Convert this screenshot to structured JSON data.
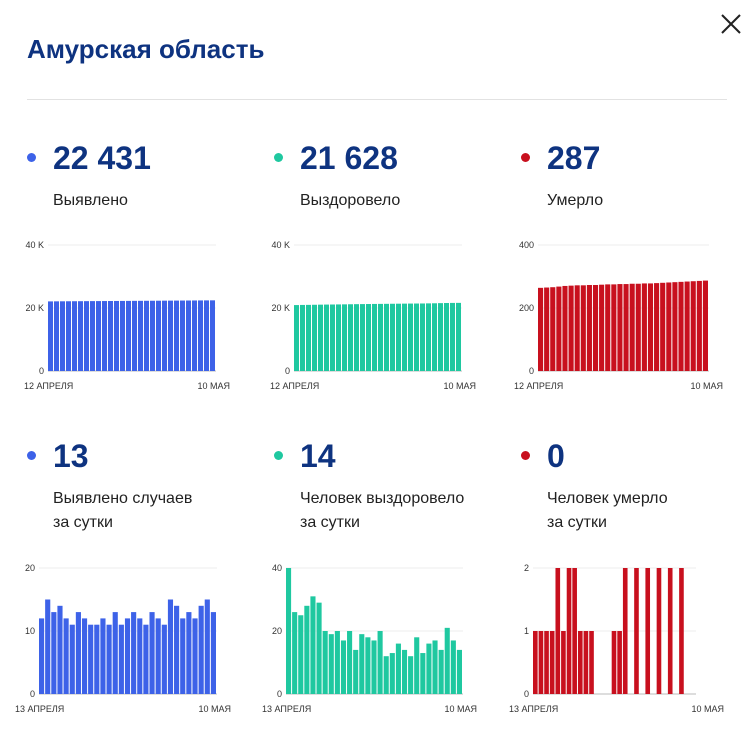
{
  "header": {
    "title": "Амурская область",
    "close_icon": "close-icon"
  },
  "colors": {
    "title": "#0e3380",
    "confirmed": "#3d62e8",
    "recovered": "#1fc8a0",
    "deaths": "#c8101e"
  },
  "cumulative": [
    {
      "value": "22 431",
      "label": "Выявлено",
      "color": "#3d62e8",
      "icon": "dot-icon"
    },
    {
      "value": "21 628",
      "label": "Выздоровело",
      "color": "#1fc8a0",
      "icon": "dot-icon"
    },
    {
      "value": "287",
      "label": "Умерло",
      "color": "#c8101e",
      "icon": "dot-icon"
    }
  ],
  "daily": [
    {
      "value": "13",
      "label_line1": "Выявлено случаев",
      "label_line2": "за сутки",
      "color": "#3d62e8",
      "icon": "dot-icon"
    },
    {
      "value": "14",
      "label_line1": "Человек выздоровело",
      "label_line2": "за сутки",
      "color": "#1fc8a0",
      "icon": "dot-icon"
    },
    {
      "value": "0",
      "label_line1": "Человек умерло",
      "label_line2": "за сутки",
      "color": "#c8101e",
      "icon": "dot-icon"
    }
  ],
  "chart_data": [
    {
      "type": "bar",
      "series": [
        {
          "name": "Выявлено",
          "color": "#3d62e8",
          "values": [
            22096,
            22113,
            22128,
            22140,
            22153,
            22162,
            22175,
            22186,
            22197,
            22209,
            22220,
            22231,
            22244,
            22255,
            22267,
            22278,
            22291,
            22302,
            22315,
            22329,
            22343,
            22355,
            22368,
            22382,
            22395,
            22406,
            22418,
            22431
          ]
        }
      ],
      "ylim": [
        0,
        40000
      ],
      "yticks": [
        "0",
        "20 K",
        "40 K"
      ],
      "ytick_values": [
        0,
        20000,
        40000
      ],
      "xlabel_left": "12 АПРЕЛЯ",
      "xlabel_right": "10 МАЯ"
    },
    {
      "type": "bar",
      "series": [
        {
          "name": "Выздоровело",
          "color": "#1fc8a0",
          "values": [
            20930,
            20970,
            20995,
            21025,
            21060,
            21090,
            21110,
            21135,
            21160,
            21190,
            21220,
            21240,
            21265,
            21290,
            21305,
            21320,
            21345,
            21365,
            21385,
            21405,
            21420,
            21435,
            21470,
            21500,
            21545,
            21582,
            21614,
            21628
          ]
        }
      ],
      "ylim": [
        0,
        40000
      ],
      "yticks": [
        "0",
        "20 K",
        "40 K"
      ],
      "ytick_values": [
        0,
        20000,
        40000
      ],
      "xlabel_left": "12 АПРЕЛЯ",
      "xlabel_right": "10 МАЯ"
    },
    {
      "type": "bar",
      "series": [
        {
          "name": "Умерло",
          "color": "#c8101e",
          "values": [
            264,
            265,
            266,
            268,
            270,
            271,
            272,
            272,
            273,
            273,
            274,
            275,
            275,
            276,
            276,
            277,
            277,
            278,
            278,
            279,
            280,
            281,
            282,
            283,
            284,
            285,
            286,
            287
          ]
        }
      ],
      "ylim": [
        0,
        400
      ],
      "yticks": [
        "0",
        "200",
        "400"
      ],
      "ytick_values": [
        0,
        200,
        400
      ],
      "xlabel_left": "12 АПРЕЛЯ",
      "xlabel_right": "10 МАЯ"
    },
    {
      "type": "bar",
      "series": [
        {
          "name": "Выявлено случаев за сутки",
          "color": "#3d62e8",
          "values": [
            12,
            15,
            13,
            14,
            12,
            11,
            13,
            12,
            11,
            11,
            12,
            11,
            13,
            11,
            12,
            13,
            12,
            11,
            13,
            12,
            11,
            15,
            14,
            12,
            13,
            12,
            14,
            15,
            13
          ]
        }
      ],
      "ylim": [
        0,
        20
      ],
      "yticks": [
        "0",
        "10",
        "20"
      ],
      "ytick_values": [
        0,
        10,
        20
      ],
      "xlabel_left": "13 АПРЕЛЯ",
      "xlabel_right": "10 МАЯ"
    },
    {
      "type": "bar",
      "series": [
        {
          "name": "Человек выздоровело за сутки",
          "color": "#1fc8a0",
          "values": [
            40,
            26,
            25,
            28,
            31,
            29,
            20,
            19,
            20,
            17,
            20,
            14,
            19,
            18,
            17,
            20,
            12,
            13,
            16,
            14,
            12,
            18,
            13,
            16,
            17,
            14,
            21,
            17,
            14
          ]
        }
      ],
      "ylim": [
        0,
        40
      ],
      "yticks": [
        "0",
        "20",
        "40"
      ],
      "ytick_values": [
        0,
        20,
        40
      ],
      "xlabel_left": "13 АПРЕЛЯ",
      "xlabel_right": "10 МАЯ"
    },
    {
      "type": "bar",
      "series": [
        {
          "name": "Человек умерло за сутки",
          "color": "#c8101e",
          "values": [
            1,
            1,
            1,
            1,
            2,
            1,
            2,
            2,
            1,
            1,
            1,
            0,
            0,
            0,
            1,
            1,
            2,
            0,
            2,
            0,
            2,
            0,
            2,
            0,
            2,
            0,
            2,
            0,
            0
          ]
        }
      ],
      "ylim": [
        0,
        2
      ],
      "yticks": [
        "0",
        "1",
        "2"
      ],
      "ytick_values": [
        0,
        1,
        2
      ],
      "xlabel_left": "13 АПРЕЛЯ",
      "xlabel_right": "10 МАЯ"
    }
  ]
}
